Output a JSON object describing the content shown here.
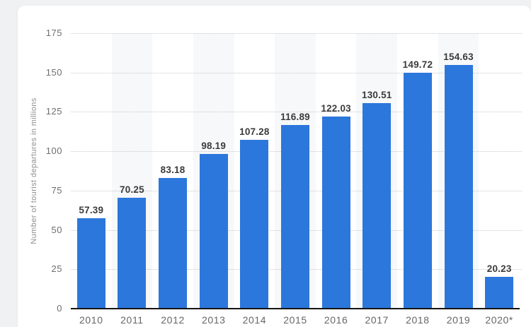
{
  "page": {
    "background_color": "#eff1f3",
    "card_color": "#ffffff"
  },
  "chart_data": {
    "type": "bar",
    "title": "",
    "xlabel": "",
    "ylabel": "Number of tourist departures in millions",
    "categories": [
      "2010",
      "2011",
      "2012",
      "2013",
      "2014",
      "2015",
      "2016",
      "2017",
      "2018",
      "2019",
      "2020*"
    ],
    "values": [
      57.39,
      70.25,
      83.18,
      98.19,
      107.28,
      116.89,
      122.03,
      130.51,
      149.72,
      154.63,
      20.23
    ],
    "value_labels": [
      "57.39",
      "70.25",
      "83.18",
      "98.19",
      "107.28",
      "116.89",
      "122.03",
      "130.51",
      "149.72",
      "154.63",
      "20.23"
    ],
    "ylim": [
      0,
      175
    ],
    "yticks": [
      0,
      25,
      50,
      75,
      100,
      125,
      150,
      175
    ],
    "grid": "horizontal-dotted",
    "legend": "none",
    "banded_columns": "alternating-odd",
    "bar_color": "#2c77dc",
    "band_color": "#f7f8f9",
    "gridline_color": "#c9c9c9",
    "axis_color": "#151515",
    "value_label_color": "#3b3b3b",
    "tick_label_color": "#6e6e6e",
    "axis_title_color": "#8f8f8f"
  }
}
